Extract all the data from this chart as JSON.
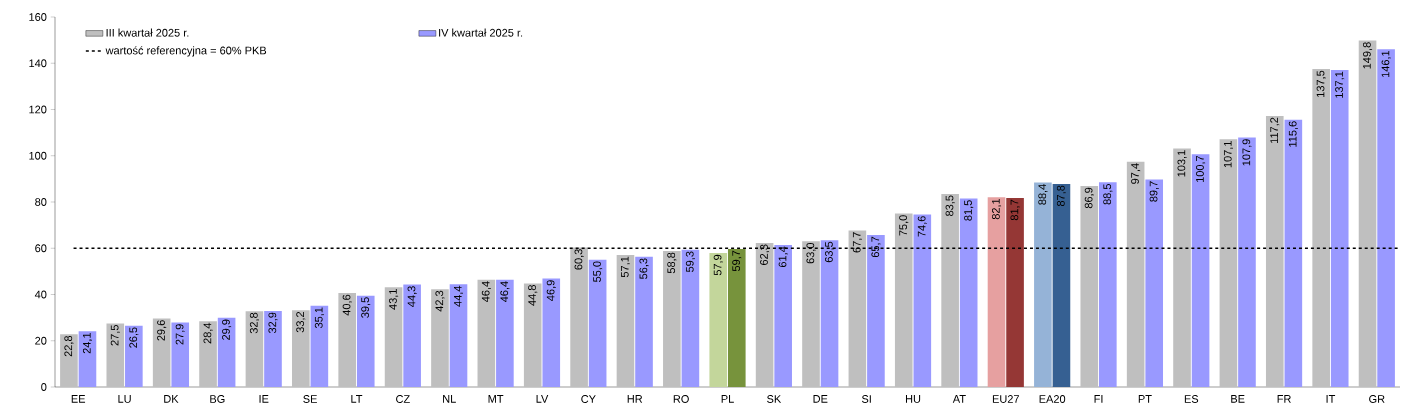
{
  "chart_data": {
    "type": "bar",
    "categories": [
      "EE",
      "LU",
      "DK",
      "BG",
      "IE",
      "SE",
      "LT",
      "CZ",
      "NL",
      "MT",
      "LV",
      "CY",
      "HR",
      "RO",
      "PL",
      "SK",
      "DE",
      "SI",
      "HU",
      "AT",
      "EU27",
      "EA20",
      "FI",
      "PT",
      "ES",
      "BE",
      "FR",
      "IT",
      "GR"
    ],
    "series": [
      {
        "name": "III kwartał 2025 r.",
        "color": "#bfbfbf",
        "colors": [
          "#bfbfbf",
          "#bfbfbf",
          "#bfbfbf",
          "#bfbfbf",
          "#bfbfbf",
          "#bfbfbf",
          "#bfbfbf",
          "#bfbfbf",
          "#bfbfbf",
          "#bfbfbf",
          "#bfbfbf",
          "#bfbfbf",
          "#bfbfbf",
          "#bfbfbf",
          "#c3d69b",
          "#bfbfbf",
          "#bfbfbf",
          "#bfbfbf",
          "#bfbfbf",
          "#bfbfbf",
          "#e6a0a0",
          "#95b3d7",
          "#bfbfbf",
          "#bfbfbf",
          "#bfbfbf",
          "#bfbfbf",
          "#bfbfbf",
          "#bfbfbf",
          "#bfbfbf"
        ],
        "values": [
          22.8,
          27.5,
          29.6,
          28.4,
          32.8,
          33.2,
          40.6,
          43.1,
          42.3,
          46.4,
          44.8,
          60.3,
          57.1,
          58.8,
          57.9,
          62.3,
          63.0,
          67.7,
          75.0,
          83.5,
          82.1,
          88.4,
          86.9,
          97.4,
          103.1,
          107.1,
          117.2,
          137.5,
          149.8
        ],
        "value_labels": [
          "22,8",
          "27,5",
          "29,6",
          "28,4",
          "32,8",
          "33,2",
          "40,6",
          "43,1",
          "42,3",
          "46,4",
          "44,8",
          "60,3",
          "57,1",
          "58,8",
          "57,9",
          "62,3",
          "63,0",
          "67,7",
          "75,0",
          "83,5",
          "82,1",
          "88,4",
          "86,9",
          "97,4",
          "103,1",
          "107,1",
          "117,2",
          "137,5",
          "149,8"
        ]
      },
      {
        "name": "IV kwartał 2025 r.",
        "color": "#9999ff",
        "colors": [
          "#9999ff",
          "#9999ff",
          "#9999ff",
          "#9999ff",
          "#9999ff",
          "#9999ff",
          "#9999ff",
          "#9999ff",
          "#9999ff",
          "#9999ff",
          "#9999ff",
          "#9999ff",
          "#9999ff",
          "#9999ff",
          "#77933c",
          "#9999ff",
          "#9999ff",
          "#9999ff",
          "#9999ff",
          "#9999ff",
          "#953735",
          "#366092",
          "#9999ff",
          "#9999ff",
          "#9999ff",
          "#9999ff",
          "#9999ff",
          "#9999ff",
          "#9999ff"
        ],
        "values": [
          24.1,
          26.5,
          27.9,
          29.9,
          32.9,
          35.1,
          39.5,
          44.3,
          44.4,
          46.4,
          46.9,
          55.0,
          56.3,
          59.3,
          59.7,
          61.4,
          63.5,
          65.7,
          74.6,
          81.5,
          81.7,
          87.8,
          88.5,
          89.7,
          100.7,
          107.9,
          115.6,
          137.1,
          146.1
        ],
        "value_labels": [
          "24,1",
          "26,5",
          "27,9",
          "29,9",
          "32,9",
          "35,1",
          "39,5",
          "44,3",
          "44,4",
          "46,4",
          "46,9",
          "55,0",
          "56,3",
          "59,3",
          "59,7",
          "61,4",
          "63,5",
          "65,7",
          "74,6",
          "81,5",
          "81,7",
          "87,8",
          "88,5",
          "89,7",
          "100,7",
          "107,9",
          "115,6",
          "137,1",
          "146,1"
        ]
      }
    ],
    "ylim": [
      0,
      160
    ],
    "yticks": [
      0,
      20,
      40,
      60,
      80,
      100,
      120,
      140,
      160
    ],
    "ref_lines": [
      {
        "axis": "y",
        "value": 60,
        "label": "wartość referencyjna = 60% PKB",
        "color": "#000000",
        "line_style": "dashed"
      }
    ],
    "legend": "top left"
  }
}
